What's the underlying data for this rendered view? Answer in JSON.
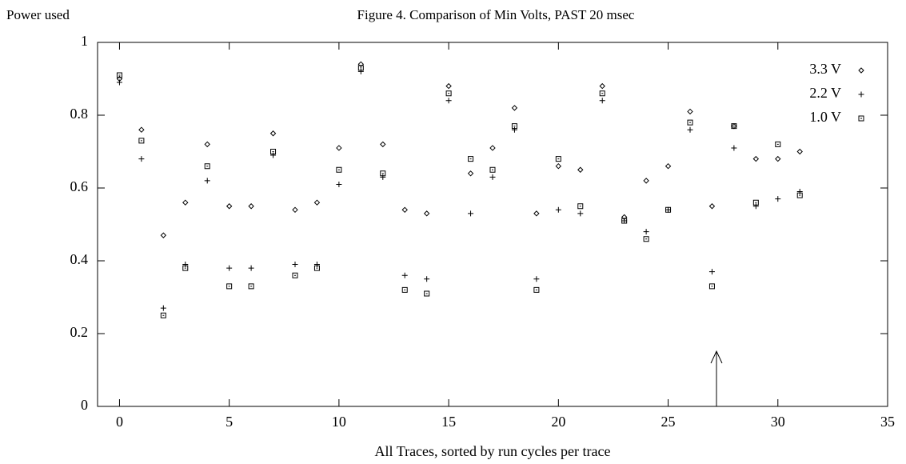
{
  "chart_data": {
    "type": "scatter",
    "title": "Figure 4. Comparison of Min Volts, PAST 20 msec",
    "x_label": "All Traces, sorted by run cycles per trace",
    "y_label": "Power used",
    "x": [
      0,
      1,
      2,
      3,
      4,
      5,
      6,
      7,
      8,
      9,
      10,
      11,
      12,
      13,
      14,
      15,
      16,
      17,
      18,
      19,
      20,
      21,
      22,
      23,
      24,
      25,
      26,
      27,
      28,
      29,
      30,
      31
    ],
    "series": [
      {
        "name": "3.3 V",
        "color": "#000000",
        "marker": "diamond",
        "values": [
          0.9,
          0.76,
          0.47,
          0.56,
          0.72,
          0.55,
          0.55,
          0.75,
          0.54,
          0.56,
          0.71,
          0.94,
          0.72,
          0.54,
          0.53,
          0.88,
          0.64,
          0.71,
          0.82,
          0.53,
          0.66,
          0.65,
          0.88,
          0.52,
          0.62,
          0.66,
          0.81,
          0.55,
          0.77,
          0.68,
          0.68,
          0.7
        ]
      },
      {
        "name": "2.2 V",
        "color": "#000000",
        "marker": "plus",
        "values": [
          0.89,
          0.68,
          0.27,
          0.39,
          0.62,
          0.38,
          0.38,
          0.69,
          0.39,
          0.39,
          0.61,
          0.92,
          0.63,
          0.36,
          0.35,
          0.84,
          0.53,
          0.63,
          0.76,
          0.35,
          0.54,
          0.53,
          0.84,
          0.51,
          0.48,
          0.54,
          0.76,
          0.37,
          0.71,
          0.55,
          0.57,
          0.59
        ]
      },
      {
        "name": "1.0 V",
        "color": "#000000",
        "marker": "square",
        "values": [
          0.91,
          0.73,
          0.25,
          0.38,
          0.66,
          0.33,
          0.33,
          0.7,
          0.36,
          0.38,
          0.65,
          0.93,
          0.64,
          0.32,
          0.31,
          0.86,
          0.68,
          0.65,
          0.77,
          0.32,
          0.68,
          0.55,
          0.86,
          0.51,
          0.46,
          0.54,
          0.78,
          0.33,
          0.77,
          0.56,
          0.72,
          0.58
        ]
      }
    ],
    "xlim": [
      -1,
      35
    ],
    "xticks": [
      0,
      5,
      10,
      15,
      20,
      25,
      30,
      35
    ],
    "ylim": [
      0,
      1
    ],
    "yticks": [
      0,
      0.2,
      0.4,
      0.6,
      0.8,
      1
    ],
    "grid": false,
    "legend": "top-right"
  }
}
